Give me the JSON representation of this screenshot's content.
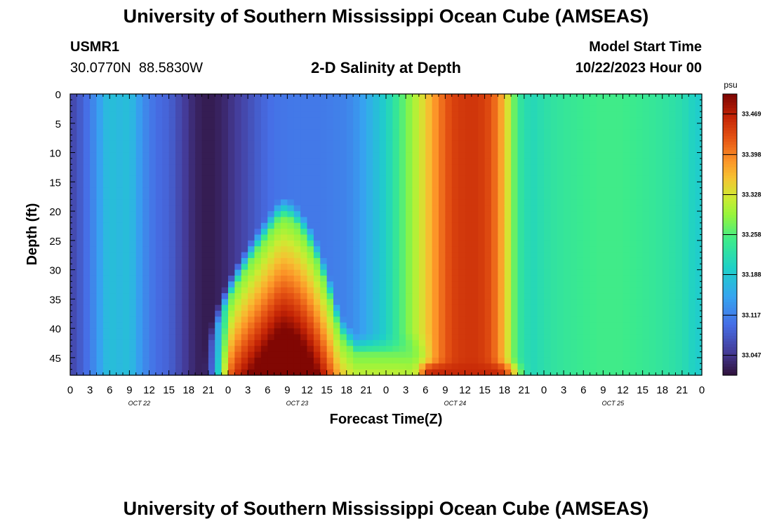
{
  "page": {
    "title": "University of Southern Mississippi Ocean Cube (AMSEAS)",
    "footer_title": "University of Southern Mississippi Ocean Cube (AMSEAS)",
    "station_id": "USMR1",
    "station_coords": "30.0770N  88.5830W",
    "chart_heading": "2-D Salinity at Depth",
    "model_start_label": "Model Start Time",
    "model_start_value": "10/22/2023 Hour 00"
  },
  "chart_data": {
    "type": "heatmap",
    "title": "2-D Salinity at Depth",
    "xlabel": "Forecast Time(Z)",
    "ylabel": "Depth (ft)",
    "x_range_hours": [
      0,
      96
    ],
    "ylim": [
      0,
      48
    ],
    "x_ticks": [
      "0",
      "3",
      "6",
      "9",
      "12",
      "15",
      "18",
      "21",
      "0",
      "3",
      "6",
      "9",
      "12",
      "15",
      "18",
      "21",
      "0",
      "3",
      "6",
      "9",
      "12",
      "15",
      "18",
      "21",
      "0",
      "3",
      "6",
      "9",
      "12",
      "15",
      "18",
      "21",
      "0"
    ],
    "y_ticks": [
      "0",
      "5",
      "10",
      "15",
      "20",
      "25",
      "30",
      "35",
      "40",
      "45"
    ],
    "day_labels": [
      "OCT 22",
      "OCT 23",
      "OCT 24",
      "OCT 25"
    ],
    "colorbar": {
      "unit": "psu",
      "min": 33.012,
      "max": 33.504,
      "tick_labels": [
        "33.469",
        "33.398",
        "33.328",
        "33.258",
        "33.188",
        "33.117",
        "33.047"
      ]
    },
    "surface_profile": [
      {
        "h": 0,
        "v": 33.06
      },
      {
        "h": 1,
        "v": 33.075
      },
      {
        "h": 3,
        "v": 33.11
      },
      {
        "h": 5,
        "v": 33.16
      },
      {
        "h": 6,
        "v": 33.185
      },
      {
        "h": 7,
        "v": 33.17
      },
      {
        "h": 9,
        "v": 33.18
      },
      {
        "h": 11,
        "v": 33.13
      },
      {
        "h": 13,
        "v": 33.1
      },
      {
        "h": 15,
        "v": 33.09
      },
      {
        "h": 17,
        "v": 33.06
      },
      {
        "h": 19,
        "v": 33.03
      },
      {
        "h": 21,
        "v": 33.02
      },
      {
        "h": 23,
        "v": 33.03
      },
      {
        "h": 25,
        "v": 33.05
      },
      {
        "h": 27,
        "v": 33.07
      },
      {
        "h": 29,
        "v": 33.09
      },
      {
        "h": 31,
        "v": 33.105
      },
      {
        "h": 34,
        "v": 33.11
      },
      {
        "h": 37,
        "v": 33.11
      },
      {
        "h": 40,
        "v": 33.115
      },
      {
        "h": 42,
        "v": 33.12
      },
      {
        "h": 44,
        "v": 33.14
      },
      {
        "h": 46,
        "v": 33.17
      },
      {
        "h": 48,
        "v": 33.2
      },
      {
        "h": 50,
        "v": 33.25
      },
      {
        "h": 53,
        "v": 33.32
      },
      {
        "h": 56,
        "v": 33.4
      },
      {
        "h": 58,
        "v": 33.44
      },
      {
        "h": 60,
        "v": 33.45
      },
      {
        "h": 62,
        "v": 33.45
      },
      {
        "h": 64,
        "v": 33.43
      },
      {
        "h": 66,
        "v": 33.36
      },
      {
        "h": 68,
        "v": 33.24
      },
      {
        "h": 70,
        "v": 33.21
      },
      {
        "h": 73,
        "v": 33.23
      },
      {
        "h": 76,
        "v": 33.24
      },
      {
        "h": 80,
        "v": 33.25
      },
      {
        "h": 84,
        "v": 33.25
      },
      {
        "h": 88,
        "v": 33.24
      },
      {
        "h": 91,
        "v": 33.23
      },
      {
        "h": 93,
        "v": 33.22
      },
      {
        "h": 96,
        "v": 33.19
      }
    ]
  }
}
